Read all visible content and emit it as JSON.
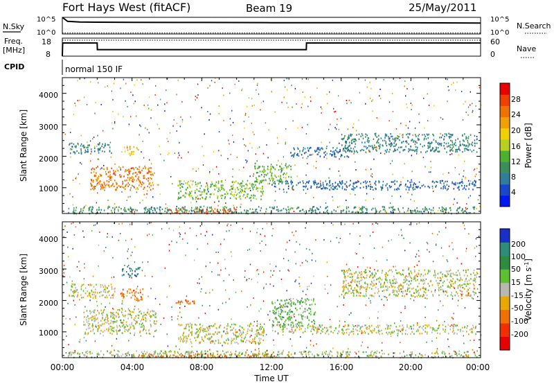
{
  "header": {
    "station": "Fort Hays West (fitACF)",
    "beam": "Beam 19",
    "date": "25/May/2011"
  },
  "nsky_panel": {
    "left_label": "N.Sky",
    "right_label": "N.Search",
    "left_ticks": [
      "10^5",
      "10^0"
    ],
    "right_ticks": [
      "10^5",
      "10^0"
    ]
  },
  "freq_panel": {
    "left_label_line1": "Freq.",
    "left_label_line2": "[MHz]",
    "right_label": "Nave",
    "left_ticks": [
      "18",
      "8"
    ],
    "right_ticks": [
      "60",
      "0"
    ]
  },
  "cpid_panel": {
    "label": "CPID",
    "mode": "normal 150 IF"
  },
  "power_panel": {
    "ylabel": "Slant Range [km]",
    "yticks": [
      "4000",
      "3000",
      "2000",
      "1000"
    ],
    "colorbar_label": "Power [dB]",
    "colorbar_ticks": [
      "28",
      "24",
      "20",
      "16",
      "12",
      "8",
      "4"
    ],
    "colors": [
      "#0018f0",
      "#1848c8",
      "#2f7f9a",
      "#3c8f5a",
      "#4cb030",
      "#b8d020",
      "#f0d000",
      "#f0a000",
      "#f07000",
      "#f04000",
      "#e80000"
    ]
  },
  "velocity_panel": {
    "ylabel": "Slant Range [km]",
    "yticks": [
      "4000",
      "3000",
      "2000",
      "1000"
    ],
    "colorbar_label": "Velocity [m s",
    "colorbar_label_sup": "-1",
    "colorbar_label_end": "]",
    "colorbar_ticks": [
      "200",
      "100",
      "50",
      "15",
      "-15",
      "-50",
      "-100",
      "-200"
    ],
    "colors": [
      "#1830c8",
      "#2e8c7a",
      "#2e8c40",
      "#5cc030",
      "#b8b8b0",
      "#e8a800",
      "#f07000",
      "#f03000",
      "#e80000"
    ]
  },
  "x_axis": {
    "ticks": [
      "00:00",
      "04:00",
      "08:00",
      "12:00",
      "16:00",
      "20:00",
      "00:00"
    ],
    "label": "Time UT"
  },
  "chart_data": [
    {
      "type": "line",
      "title": "N.Sky / N.Search",
      "x": [
        0,
        0.3,
        1,
        2,
        4,
        8,
        12,
        16,
        20,
        24
      ],
      "series": [
        {
          "name": "N.Sky",
          "values": [
            5,
            3.8,
            3.6,
            3.55,
            3.5,
            3.45,
            3.4,
            3.4,
            3.35,
            3.3
          ]
        },
        {
          "name": "N.Search",
          "values": [
            0.3,
            0.3,
            0.3,
            0.3,
            0.3,
            0.3,
            0.3,
            0.3,
            0.3,
            0.3
          ]
        }
      ],
      "ylim": [
        0,
        5
      ],
      "xlim": [
        0,
        24
      ]
    },
    {
      "type": "line",
      "title": "Freq. [MHz] / Nave",
      "x": [
        0,
        0.02,
        2.0,
        2.01,
        14.0,
        14.01,
        24
      ],
      "series": [
        {
          "name": "Freq.",
          "values": [
            8,
            15.3,
            15.3,
            11.6,
            11.6,
            15.3,
            15.3
          ]
        },
        {
          "name": "Nave",
          "values": [
            60,
            60,
            60,
            60,
            60,
            60,
            60
          ]
        }
      ],
      "ylim": [
        8,
        18
      ],
      "xlim": [
        0,
        24
      ]
    },
    {
      "type": "heatmap",
      "title": "Power [dB]",
      "xlabel": "Time UT",
      "ylabel": "Slant Range [km]",
      "xlim": [
        0,
        24
      ],
      "ylim": [
        180,
        4500
      ],
      "clim": [
        0,
        30
      ],
      "regions": [
        {
          "t": [
            1.6,
            5.2
          ],
          "r": [
            950,
            1700
          ],
          "v": 23
        },
        {
          "t": [
            3.5,
            4.4
          ],
          "r": [
            2050,
            2350
          ],
          "v": 17
        },
        {
          "t": [
            0.3,
            2.8
          ],
          "r": [
            2100,
            2450
          ],
          "v": 8
        },
        {
          "t": [
            6.6,
            11.5
          ],
          "r": [
            650,
            1250
          ],
          "v": 13
        },
        {
          "t": [
            11.0,
            13.1
          ],
          "r": [
            1150,
            1800
          ],
          "v": 12
        },
        {
          "t": [
            12.0,
            23.7
          ],
          "r": [
            950,
            1250
          ],
          "v": 6
        },
        {
          "t": [
            13.0,
            16.5
          ],
          "r": [
            2000,
            2300
          ],
          "v": 6
        },
        {
          "t": [
            16.0,
            23.8
          ],
          "r": [
            2150,
            2750
          ],
          "v": 8
        },
        {
          "t": [
            0.3,
            23.8
          ],
          "r": [
            200,
            420
          ],
          "v": 9
        },
        {
          "t": [
            6.0,
            10.0
          ],
          "r": [
            200,
            350
          ],
          "v": 25
        }
      ]
    },
    {
      "type": "heatmap",
      "title": "Velocity [m s-1]",
      "xlabel": "Time UT",
      "ylabel": "Slant Range [km]",
      "xlim": [
        0,
        24
      ],
      "ylim": [
        180,
        4500
      ],
      "clim": [
        -250,
        250
      ],
      "regions": [
        {
          "t": [
            1.2,
            5.4
          ],
          "r": [
            950,
            1750
          ],
          "v": 0
        },
        {
          "t": [
            3.3,
            4.6
          ],
          "r": [
            2000,
            2400
          ],
          "v": -60
        },
        {
          "t": [
            0.3,
            3.0
          ],
          "r": [
            2100,
            2550
          ],
          "v": 0
        },
        {
          "t": [
            6.5,
            7.6
          ],
          "r": [
            1900,
            2050
          ],
          "v": -80
        },
        {
          "t": [
            6.6,
            11.6
          ],
          "r": [
            650,
            1300
          ],
          "v": 0
        },
        {
          "t": [
            12.0,
            14.5
          ],
          "r": [
            1200,
            2100
          ],
          "v": 40
        },
        {
          "t": [
            12.0,
            23.7
          ],
          "r": [
            950,
            1250
          ],
          "v": 0
        },
        {
          "t": [
            16.0,
            23.8
          ],
          "r": [
            2150,
            3000
          ],
          "v": 0
        },
        {
          "t": [
            0.3,
            23.8
          ],
          "r": [
            200,
            420
          ],
          "v": 10
        },
        {
          "t": [
            4.0,
            12.0
          ],
          "r": [
            200,
            330
          ],
          "v": -60
        },
        {
          "t": [
            3.4,
            4.4
          ],
          "r": [
            2750,
            3100
          ],
          "v": 180
        }
      ]
    }
  ]
}
